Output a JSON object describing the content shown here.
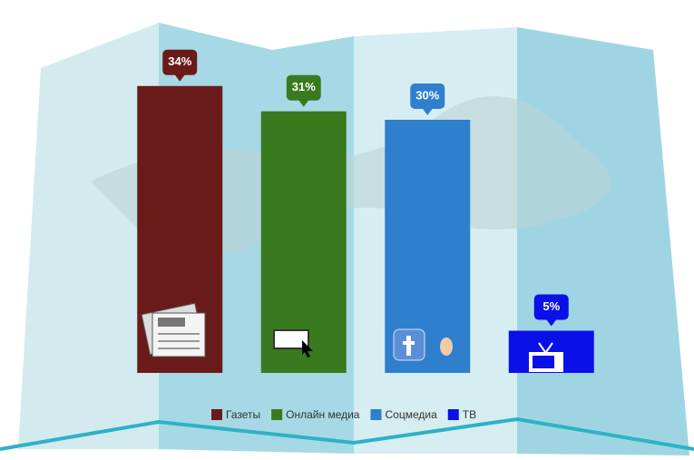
{
  "chart_data": {
    "type": "bar",
    "categories": [
      "Газеты",
      "Онлайн медиа",
      "Соцмедиа",
      "ТВ"
    ],
    "values": [
      34,
      31,
      30,
      5
    ],
    "value_labels": [
      "34%",
      "31%",
      "30%",
      "5%"
    ],
    "colors": [
      "#6b1a1a",
      "#3a7a1e",
      "#2f7fcf",
      "#0a10e8"
    ],
    "ylim": [
      0,
      40
    ]
  }
}
